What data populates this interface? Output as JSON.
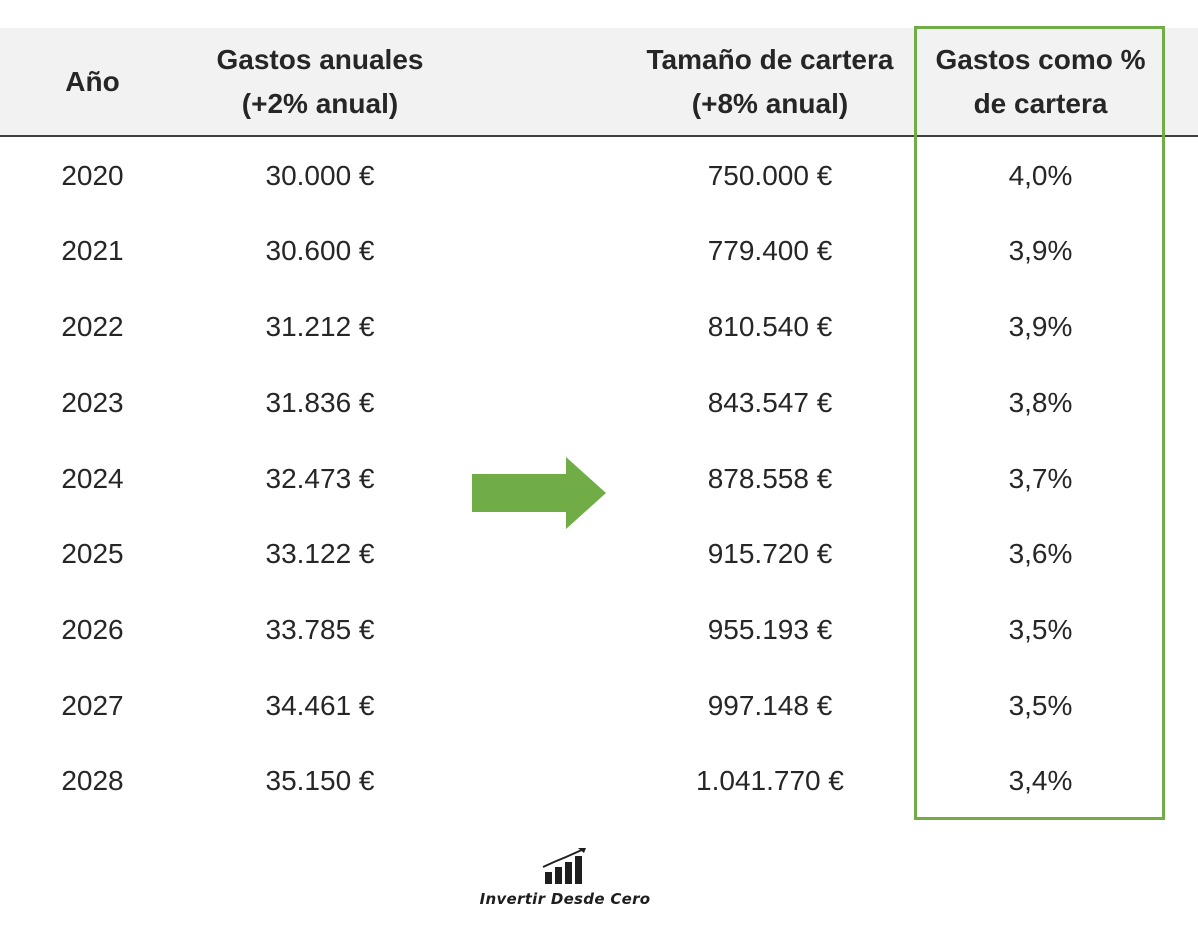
{
  "table": {
    "headers": {
      "year": "Año",
      "gastos_line1": "Gastos anuales",
      "gastos_line2": "(+2% anual)",
      "cartera_line1": "Tamaño de cartera",
      "cartera_line2": "(+8% anual)",
      "pct_line1": "Gastos como %",
      "pct_line2": "de cartera"
    },
    "rows": [
      {
        "year": "2020",
        "gastos": "30.000 €",
        "cartera": "750.000 €",
        "pct": "4,0%"
      },
      {
        "year": "2021",
        "gastos": "30.600 €",
        "cartera": "779.400 €",
        "pct": "3,9%"
      },
      {
        "year": "2022",
        "gastos": "31.212 €",
        "cartera": "810.540 €",
        "pct": "3,9%"
      },
      {
        "year": "2023",
        "gastos": "31.836 €",
        "cartera": "843.547 €",
        "pct": "3,8%"
      },
      {
        "year": "2024",
        "gastos": "32.473 €",
        "cartera": "878.558 €",
        "pct": "3,7%"
      },
      {
        "year": "2025",
        "gastos": "33.122 €",
        "cartera": "915.720 €",
        "pct": "3,6%"
      },
      {
        "year": "2026",
        "gastos": "33.785 €",
        "cartera": "955.193 €",
        "pct": "3,5%"
      },
      {
        "year": "2027",
        "gastos": "34.461 €",
        "cartera": "997.148 €",
        "pct": "3,5%"
      },
      {
        "year": "2028",
        "gastos": "35.150 €",
        "cartera": "1.041.770 €",
        "pct": "3,4%"
      }
    ]
  },
  "logo": {
    "text": "Invertir Desde Cero"
  },
  "colors": {
    "header_bg": "#f2f2f2",
    "highlight": "#70ad47",
    "arrow": "#70ad47",
    "text": "#262626"
  },
  "icons": {
    "arrow": "right-arrow-icon",
    "logo": "rising-bars-chart-icon"
  }
}
